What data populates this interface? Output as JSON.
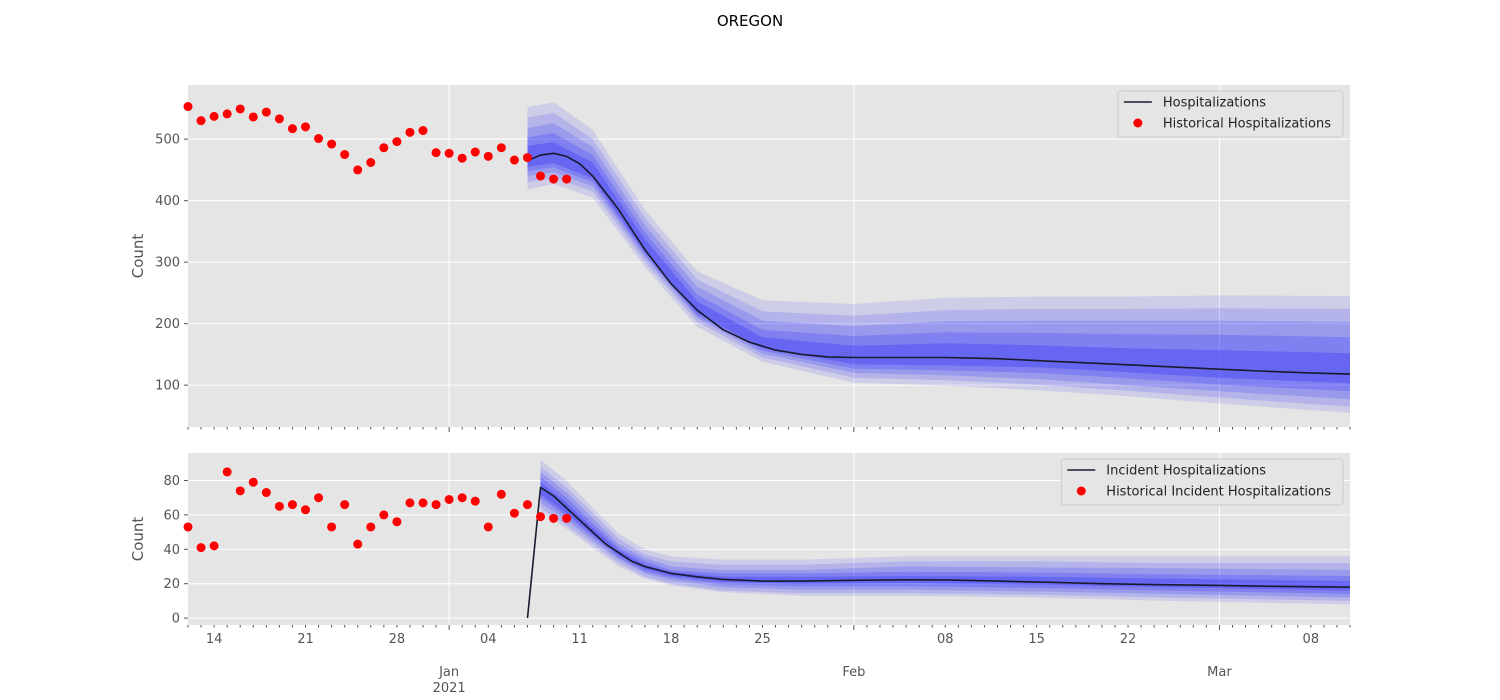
{
  "title": "OREGON",
  "x_ticks": [
    {
      "date": "2020-12-14",
      "label": "14",
      "major": false
    },
    {
      "date": "2020-12-21",
      "label": "21",
      "major": false
    },
    {
      "date": "2020-12-28",
      "label": "28",
      "major": false
    },
    {
      "date": "2021-01-01",
      "label": "Jan",
      "sub": "2021",
      "major": true
    },
    {
      "date": "2021-01-04",
      "label": "04",
      "major": false
    },
    {
      "date": "2021-01-11",
      "label": "11",
      "major": false
    },
    {
      "date": "2021-01-18",
      "label": "18",
      "major": false
    },
    {
      "date": "2021-01-25",
      "label": "25",
      "major": false
    },
    {
      "date": "2021-02-01",
      "label": "Feb",
      "major": true
    },
    {
      "date": "2021-02-08",
      "label": "08",
      "major": false
    },
    {
      "date": "2021-02-15",
      "label": "15",
      "major": false
    },
    {
      "date": "2021-02-22",
      "label": "22",
      "major": false
    },
    {
      "date": "2021-03-01",
      "label": "Mar",
      "major": true
    },
    {
      "date": "2021-03-08",
      "label": "08",
      "major": false
    }
  ],
  "chart_data": [
    {
      "type": "line",
      "ylabel": "Count",
      "xlim": [
        "2020-12-12",
        "2021-03-11"
      ],
      "ylim": [
        32,
        588
      ],
      "yticks": [
        100,
        200,
        300,
        400,
        500
      ],
      "grid": true,
      "legend": "top-right",
      "legend_entries": [
        "Hospitalizations",
        "Historical Hospitalizations"
      ],
      "colors": {
        "line": "#1a1a2e",
        "points": "#ff0000",
        "band": "#0000ff"
      },
      "series": [
        {
          "name": "Hospitalizations",
          "kind": "line",
          "x": [
            "2021-01-07",
            "2021-01-08",
            "2021-01-09",
            "2021-01-10",
            "2021-01-11",
            "2021-01-12",
            "2021-01-14",
            "2021-01-16",
            "2021-01-18",
            "2021-01-20",
            "2021-01-22",
            "2021-01-24",
            "2021-01-26",
            "2021-01-28",
            "2021-01-30",
            "2021-02-01",
            "2021-02-04",
            "2021-02-08",
            "2021-02-12",
            "2021-02-16",
            "2021-02-20",
            "2021-02-24",
            "2021-02-28",
            "2021-03-04",
            "2021-03-08",
            "2021-03-11"
          ],
          "y": [
            465,
            474,
            477,
            472,
            460,
            440,
            385,
            320,
            265,
            222,
            190,
            170,
            157,
            150,
            146,
            145,
            145,
            145,
            143,
            139,
            135,
            131,
            127,
            123,
            120,
            118
          ]
        },
        {
          "name": "Historical Hospitalizations",
          "kind": "scatter",
          "x": [
            "2020-12-12",
            "2020-12-13",
            "2020-12-14",
            "2020-12-15",
            "2020-12-16",
            "2020-12-17",
            "2020-12-18",
            "2020-12-19",
            "2020-12-20",
            "2020-12-21",
            "2020-12-22",
            "2020-12-23",
            "2020-12-24",
            "2020-12-25",
            "2020-12-26",
            "2020-12-27",
            "2020-12-28",
            "2020-12-29",
            "2020-12-30",
            "2020-12-31",
            "2021-01-01",
            "2021-01-02",
            "2021-01-03",
            "2021-01-04",
            "2021-01-05",
            "2021-01-06",
            "2021-01-07",
            "2021-01-08",
            "2021-01-09",
            "2021-01-10"
          ],
          "y": [
            553,
            530,
            537,
            541,
            549,
            536,
            544,
            533,
            517,
            520,
            501,
            492,
            475,
            450,
            462,
            486,
            496,
            511,
            514,
            478,
            477,
            469,
            479,
            472,
            486,
            466,
            470,
            440,
            435,
            435
          ]
        }
      ],
      "bands": {
        "x": [
          "2021-01-07",
          "2021-01-09",
          "2021-01-12",
          "2021-01-16",
          "2021-01-20",
          "2021-01-25",
          "2021-02-01",
          "2021-02-08",
          "2021-02-15",
          "2021-02-22",
          "2021-03-01",
          "2021-03-11"
        ],
        "levels": [
          {
            "lower": [
              418,
              427,
              405,
              292,
              195,
              138,
              104,
              99,
              92,
              82,
              70,
              55
            ],
            "upper": [
              552,
              560,
              515,
              385,
              285,
              238,
              232,
              242,
              244,
              244,
              246,
              245
            ]
          },
          {
            "lower": [
              430,
              437,
              415,
              300,
              203,
              145,
              112,
              108,
              101,
              91,
              80,
              65
            ],
            "upper": [
              535,
              543,
              500,
              372,
              272,
              220,
              213,
              222,
              224,
              224,
              225,
              224
            ]
          },
          {
            "lower": [
              440,
              446,
              423,
              307,
              209,
              151,
              120,
              116,
              110,
              100,
              90,
              77
            ],
            "upper": [
              518,
              526,
              487,
              360,
              260,
              205,
              196,
              204,
              205,
              205,
              205,
              203
            ]
          },
          {
            "lower": [
              448,
              454,
              430,
              312,
              213,
              156,
              127,
              124,
              120,
              111,
              101,
              90
            ],
            "upper": [
              503,
              510,
              474,
              348,
              247,
              190,
              180,
              186,
              185,
              183,
              182,
              178
            ]
          },
          {
            "lower": [
              455,
              461,
              436,
              316,
              217,
              160,
              134,
              132,
              129,
              121,
              112,
              103
            ],
            "upper": [
              489,
              495,
              462,
              337,
              236,
              178,
              164,
              168,
              165,
              160,
              157,
              152
            ]
          }
        ]
      }
    },
    {
      "type": "line",
      "ylabel": "Count",
      "xlim": [
        "2020-12-12",
        "2021-03-11"
      ],
      "ylim": [
        -4,
        96
      ],
      "yticks": [
        0,
        20,
        40,
        60,
        80
      ],
      "grid": true,
      "legend": "top-right",
      "legend_entries": [
        "Incident Hospitalizations",
        "Historical Incident Hospitalizations"
      ],
      "colors": {
        "line": "#1a1a2e",
        "points": "#ff0000",
        "band": "#0000ff"
      },
      "series": [
        {
          "name": "Incident Hospitalizations",
          "kind": "line",
          "x": [
            "2021-01-07",
            "2021-01-08",
            "2021-01-09",
            "2021-01-10",
            "2021-01-11",
            "2021-01-12",
            "2021-01-13",
            "2021-01-14",
            "2021-01-15",
            "2021-01-16",
            "2021-01-17",
            "2021-01-18",
            "2021-01-20",
            "2021-01-22",
            "2021-01-25",
            "2021-01-28",
            "2021-02-01",
            "2021-02-05",
            "2021-02-08",
            "2021-02-12",
            "2021-02-16",
            "2021-02-20",
            "2021-02-24",
            "2021-03-01",
            "2021-03-05",
            "2021-03-11"
          ],
          "y": [
            0,
            76,
            71,
            64,
            57,
            50,
            43,
            38,
            33,
            30,
            28,
            26,
            24,
            22.5,
            21.5,
            21.5,
            22,
            22.3,
            22.2,
            21.5,
            20.8,
            20,
            19.5,
            19,
            18.5,
            18
          ]
        },
        {
          "name": "Historical Incident Hospitalizations",
          "kind": "scatter",
          "x": [
            "2020-12-12",
            "2020-12-13",
            "2020-12-14",
            "2020-12-15",
            "2020-12-16",
            "2020-12-17",
            "2020-12-18",
            "2020-12-19",
            "2020-12-20",
            "2020-12-21",
            "2020-12-22",
            "2020-12-23",
            "2020-12-24",
            "2020-12-25",
            "2020-12-26",
            "2020-12-27",
            "2020-12-28",
            "2020-12-29",
            "2020-12-30",
            "2020-12-31",
            "2021-01-01",
            "2021-01-02",
            "2021-01-03",
            "2021-01-04",
            "2021-01-05",
            "2021-01-06",
            "2021-01-07",
            "2021-01-08",
            "2021-01-09",
            "2021-01-10"
          ],
          "y": [
            53,
            41,
            42,
            85,
            74,
            79,
            73,
            65,
            66,
            63,
            70,
            53,
            66,
            43,
            53,
            60,
            56,
            67,
            67,
            66,
            69,
            70,
            68,
            53,
            72,
            61,
            66,
            59,
            58,
            58
          ]
        }
      ],
      "bands": {
        "x": [
          "2021-01-08",
          "2021-01-10",
          "2021-01-12",
          "2021-01-14",
          "2021-01-16",
          "2021-01-18",
          "2021-01-22",
          "2021-01-28",
          "2021-02-05",
          "2021-02-15",
          "2021-02-25",
          "2021-03-11"
        ],
        "levels": [
          {
            "lower": [
              62,
              52,
              41,
              30,
              23,
              19,
              15,
              13,
              13,
              12,
              10,
              8
            ],
            "upper": [
              92,
              80,
              64,
              49,
              40,
              36,
              34,
              34,
              36,
              36,
              36,
              36
            ]
          },
          {
            "lower": [
              64,
              54,
              43,
              32,
              24,
              20,
              16,
              14.5,
              14.5,
              13.5,
              12,
              10
            ],
            "upper": [
              88,
              76,
              61,
              46,
              37,
              33,
              31,
              31,
              33,
              33,
              32,
              32
            ]
          },
          {
            "lower": [
              67,
              57,
              45,
              34,
              26,
              22,
              18,
              16.5,
              16.5,
              15.5,
              14,
              12
            ],
            "upper": [
              85,
              73,
              58,
              43,
              35,
              30,
              28,
              28,
              30,
              29.5,
              29,
              28
            ]
          },
          {
            "lower": [
              70,
              59,
              47,
              35,
              27,
              23.5,
              19.5,
              18.5,
              18.5,
              17.5,
              16,
              14
            ],
            "upper": [
              82,
              70,
              55,
              41,
              33,
              28,
              26,
              26,
              27,
              26.5,
              25.5,
              24.5
            ]
          },
          {
            "lower": [
              72,
              61,
              48.5,
              36.5,
              28.5,
              24.5,
              21,
              20,
              20.5,
              19.5,
              18,
              16
            ],
            "upper": [
              79,
              67,
              52.5,
              39.5,
              31,
              27,
              24,
              24,
              24.5,
              24,
              23,
              21.5
            ]
          }
        ]
      }
    }
  ]
}
